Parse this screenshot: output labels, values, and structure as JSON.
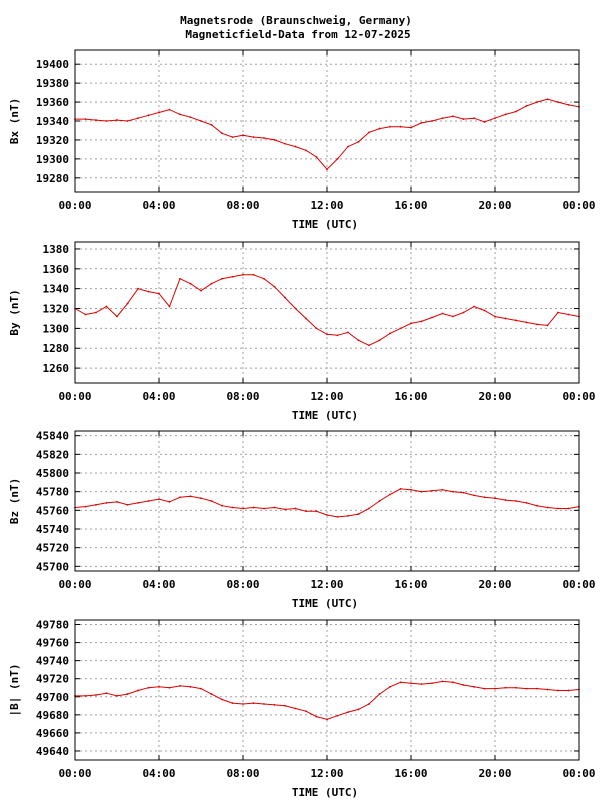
{
  "title_line1": "Magnetsrode (Braunschweig, Germany)",
  "title_line2": "Magneticfield-Data from 12-07-2025",
  "series_color": "#dd0000",
  "chart_data": [
    {
      "type": "line",
      "ylabel": "Bx (nT)",
      "xlabel": "TIME (UTC)",
      "x_ticks": [
        "00:00",
        "04:00",
        "08:00",
        "12:00",
        "16:00",
        "20:00",
        "00:00"
      ],
      "xlim": [
        0,
        24
      ],
      "ylim": [
        19265,
        19415
      ],
      "y_ticks": [
        19280,
        19300,
        19320,
        19340,
        19360,
        19380,
        19400
      ],
      "grid": true,
      "x": [
        0,
        0.5,
        1,
        1.5,
        2,
        2.5,
        3,
        3.5,
        4,
        4.5,
        5,
        5.5,
        6,
        6.5,
        7,
        7.5,
        8,
        8.5,
        9,
        9.5,
        10,
        10.5,
        11,
        11.5,
        12,
        12.5,
        13,
        13.5,
        14,
        14.5,
        15,
        15.5,
        16,
        16.5,
        17,
        17.5,
        18,
        18.5,
        19,
        19.5,
        20,
        20.5,
        21,
        21.5,
        22,
        22.5,
        23,
        23.5,
        24
      ],
      "values": [
        19342,
        19342,
        19341,
        19340,
        19341,
        19340,
        19343,
        19346,
        19349,
        19352,
        19347,
        19344,
        19340,
        19336,
        19327,
        19323,
        19325,
        19323,
        19322,
        19320,
        19316,
        19313,
        19309,
        19302,
        19289,
        19300,
        19313,
        19318,
        19328,
        19332,
        19334,
        19334,
        19333,
        19338,
        19340,
        19343,
        19345,
        19342,
        19343,
        19339,
        19343,
        19347,
        19350,
        19356,
        19360,
        19363,
        19360,
        19357,
        19355
      ]
    },
    {
      "type": "line",
      "ylabel": "By (nT)",
      "xlabel": "TIME (UTC)",
      "x_ticks": [
        "00:00",
        "04:00",
        "08:00",
        "12:00",
        "16:00",
        "20:00",
        "00:00"
      ],
      "xlim": [
        0,
        24
      ],
      "ylim": [
        1245,
        1387
      ],
      "y_ticks": [
        1260,
        1280,
        1300,
        1320,
        1340,
        1360,
        1380
      ],
      "grid": true,
      "x": [
        0,
        0.5,
        1,
        1.5,
        2,
        2.5,
        3,
        3.5,
        4,
        4.5,
        5,
        5.5,
        6,
        6.5,
        7,
        7.5,
        8,
        8.5,
        9,
        9.5,
        10,
        10.5,
        11,
        11.5,
        12,
        12.5,
        13,
        13.5,
        14,
        14.5,
        15,
        15.5,
        16,
        16.5,
        17,
        17.5,
        18,
        18.5,
        19,
        19.5,
        20,
        20.5,
        21,
        21.5,
        22,
        22.5,
        23,
        23.5,
        24
      ],
      "values": [
        1320,
        1314,
        1316,
        1322,
        1312,
        1325,
        1340,
        1337,
        1335,
        1322,
        1350,
        1345,
        1338,
        1345,
        1350,
        1352,
        1354,
        1354,
        1350,
        1342,
        1331,
        1320,
        1310,
        1300,
        1294,
        1293,
        1296,
        1288,
        1283,
        1288,
        1295,
        1300,
        1305,
        1307,
        1311,
        1315,
        1312,
        1316,
        1322,
        1318,
        1312,
        1310,
        1308,
        1306,
        1304,
        1303,
        1316,
        1314,
        1312
      ]
    },
    {
      "type": "line",
      "ylabel": "Bz (nT)",
      "xlabel": "TIME (UTC)",
      "x_ticks": [
        "00:00",
        "04:00",
        "08:00",
        "12:00",
        "16:00",
        "20:00",
        "00:00"
      ],
      "xlim": [
        0,
        24
      ],
      "ylim": [
        45695,
        45845
      ],
      "y_ticks": [
        45700,
        45720,
        45740,
        45760,
        45780,
        45800,
        45820,
        45840
      ],
      "grid": true,
      "x": [
        0,
        0.5,
        1,
        1.5,
        2,
        2.5,
        3,
        3.5,
        4,
        4.5,
        5,
        5.5,
        6,
        6.5,
        7,
        7.5,
        8,
        8.5,
        9,
        9.5,
        10,
        10.5,
        11,
        11.5,
        12,
        12.5,
        13,
        13.5,
        14,
        14.5,
        15,
        15.5,
        16,
        16.5,
        17,
        17.5,
        18,
        18.5,
        19,
        19.5,
        20,
        20.5,
        21,
        21.5,
        22,
        22.5,
        23,
        23.5,
        24
      ],
      "values": [
        45763,
        45764,
        45766,
        45768,
        45769,
        45766,
        45768,
        45770,
        45772,
        45769,
        45774,
        45775,
        45773,
        45770,
        45765,
        45763,
        45762,
        45763,
        45762,
        45763,
        45761,
        45762,
        45759,
        45759,
        45755,
        45753,
        45754,
        45756,
        45762,
        45770,
        45777,
        45783,
        45782,
        45780,
        45781,
        45782,
        45780,
        45779,
        45776,
        45774,
        45773,
        45771,
        45770,
        45768,
        45765,
        45763,
        45762,
        45762,
        45764
      ]
    },
    {
      "type": "line",
      "ylabel": "|B| (nT)",
      "xlabel": "TIME (UTC)",
      "x_ticks": [
        "00:00",
        "04:00",
        "08:00",
        "12:00",
        "16:00",
        "20:00",
        "00:00"
      ],
      "xlim": [
        0,
        24
      ],
      "ylim": [
        49630,
        49785
      ],
      "y_ticks": [
        49640,
        49660,
        49680,
        49700,
        49720,
        49740,
        49760,
        49780
      ],
      "grid": true,
      "x": [
        0,
        0.5,
        1,
        1.5,
        2,
        2.5,
        3,
        3.5,
        4,
        4.5,
        5,
        5.5,
        6,
        6.5,
        7,
        7.5,
        8,
        8.5,
        9,
        9.5,
        10,
        10.5,
        11,
        11.5,
        12,
        12.5,
        13,
        13.5,
        14,
        14.5,
        15,
        15.5,
        16,
        16.5,
        17,
        17.5,
        18,
        18.5,
        19,
        19.5,
        20,
        20.5,
        21,
        21.5,
        22,
        22.5,
        23,
        23.5,
        24
      ],
      "values": [
        49701,
        49701,
        49702,
        49704,
        49701,
        49703,
        49707,
        49710,
        49711,
        49710,
        49712,
        49711,
        49709,
        49703,
        49697,
        49693,
        49692,
        49693,
        49692,
        49691,
        49690,
        49687,
        49684,
        49678,
        49675,
        49679,
        49683,
        49686,
        49692,
        49703,
        49711,
        49716,
        49715,
        49714,
        49715,
        49717,
        49716,
        49713,
        49711,
        49709,
        49709,
        49710,
        49710,
        49709,
        49709,
        49708,
        49707,
        49707,
        49708
      ]
    }
  ]
}
